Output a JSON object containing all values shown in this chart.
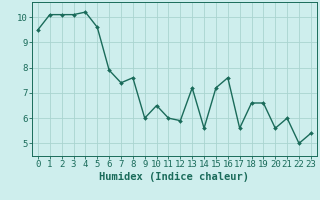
{
  "x": [
    0,
    1,
    2,
    3,
    4,
    5,
    6,
    7,
    8,
    9,
    10,
    11,
    12,
    13,
    14,
    15,
    16,
    17,
    18,
    19,
    20,
    21,
    22,
    23
  ],
  "y": [
    9.5,
    10.1,
    10.1,
    10.1,
    10.2,
    9.6,
    7.9,
    7.4,
    7.6,
    6.0,
    6.5,
    6.0,
    5.9,
    7.2,
    5.6,
    7.2,
    7.6,
    5.6,
    6.6,
    6.6,
    5.6,
    6.0,
    5.0,
    5.4
  ],
  "line_color": "#1a6b5a",
  "marker": "D",
  "marker_size": 2.0,
  "bg_color": "#ceeeed",
  "grid_color": "#aad4d0",
  "xlabel": "Humidex (Indice chaleur)",
  "xlim": [
    -0.5,
    23.5
  ],
  "ylim": [
    4.5,
    10.6
  ],
  "yticks": [
    5,
    6,
    7,
    8,
    9,
    10
  ],
  "xlabel_fontsize": 7.5,
  "tick_fontsize": 6.5,
  "axis_color": "#1a6b5a",
  "line_width": 1.0
}
